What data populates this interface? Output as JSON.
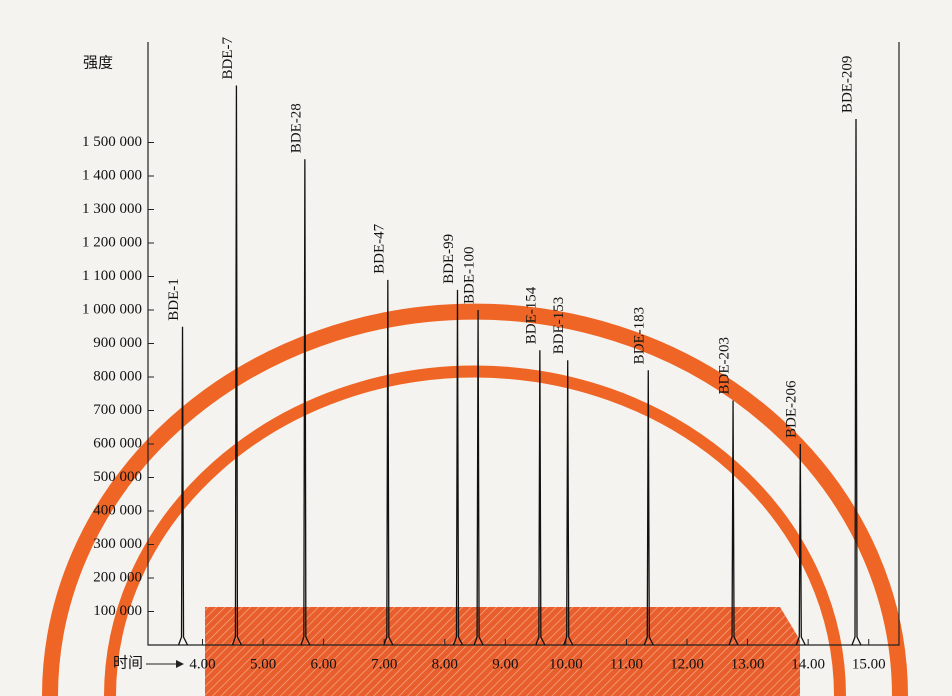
{
  "chart_data": {
    "type": "chromatogram",
    "ylabel": "强度",
    "xlabel": "时间",
    "peak_labels": [
      "BDE-1",
      "BDE-7",
      "BDE-28",
      "BDE-47",
      "BDE-99",
      "BDE-100",
      "BDE-154",
      "BDE-153",
      "BDE-183",
      "BDE-203",
      "BDE-206",
      "BDE-209"
    ],
    "x": [
      3.67,
      4.56,
      5.69,
      7.06,
      8.21,
      8.55,
      9.57,
      10.03,
      11.36,
      12.76,
      13.87,
      14.79
    ],
    "values": [
      950000,
      1670000,
      1450000,
      1090000,
      1060000,
      1000000,
      880000,
      850000,
      820000,
      730000,
      600000,
      1570000
    ],
    "color": "#111111",
    "xlim": [
      3.1,
      15.5
    ],
    "ylim": [
      0,
      1800000
    ],
    "xticks": [
      {
        "value": 4,
        "label": "4.00"
      },
      {
        "value": 5,
        "label": "5.00"
      },
      {
        "value": 6,
        "label": "6.00"
      },
      {
        "value": 7,
        "label": "7.00"
      },
      {
        "value": 8,
        "label": "8.00"
      },
      {
        "value": 9,
        "label": "9.00"
      },
      {
        "value": 10,
        "label": "10.00"
      },
      {
        "value": 11,
        "label": "11.00"
      },
      {
        "value": 12,
        "label": "12.00"
      },
      {
        "value": 13,
        "label": "13.00"
      },
      {
        "value": 14,
        "label": "14.00"
      },
      {
        "value": 15,
        "label": "15.00"
      }
    ],
    "yticks": [
      {
        "value": 100000,
        "label": "100 000"
      },
      {
        "value": 200000,
        "label": "200 000"
      },
      {
        "value": 300000,
        "label": "300 000"
      },
      {
        "value": 400000,
        "label": "400 000"
      },
      {
        "value": 500000,
        "label": "500 000"
      },
      {
        "value": 600000,
        "label": "600 000"
      },
      {
        "value": 700000,
        "label": "700 000"
      },
      {
        "value": 800000,
        "label": "800 000"
      },
      {
        "value": 900000,
        "label": "900 000"
      },
      {
        "value": 1000000,
        "label": "1 000 000"
      },
      {
        "value": 1100000,
        "label": "1 100 000"
      },
      {
        "value": 1200000,
        "label": "1 200 000"
      },
      {
        "value": 1300000,
        "label": "1 300 000"
      },
      {
        "value": 1400000,
        "label": "1 400 000"
      },
      {
        "value": 1500000,
        "label": "1 500 000"
      }
    ]
  }
}
